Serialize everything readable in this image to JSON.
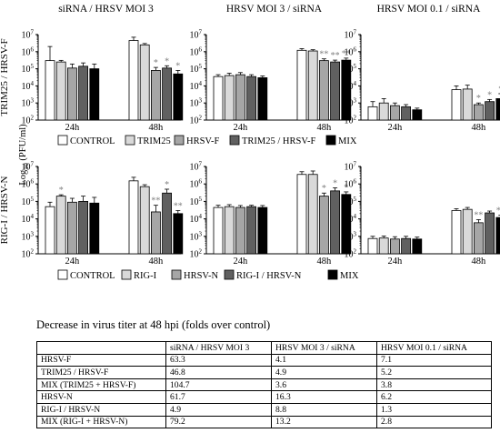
{
  "figure": {
    "y_axis_label_main": "Log",
    "y_axis_label_sub": "10",
    "y_axis_label_unit": " (PFU/ml)",
    "row_labels": [
      "TRIM25 / HRSV-F",
      "RIG-I / HRSV-N"
    ],
    "column_titles": [
      "siRNA / HRSV MOI 3",
      "HRSV MOI 3 / siRNA",
      "HRSV MOI 0.1 / siRNA"
    ],
    "legends": [
      [
        "CONTROL",
        "TRIM25",
        "HRSV-F",
        "TRIM25 / HRSV-F",
        "MIX"
      ],
      [
        "CONTROL",
        "RIG-I",
        "HRSV-N",
        "RIG-I / HRSV-N",
        "MIX"
      ]
    ],
    "bar_colors": [
      "#ffffff",
      "#d9d9d9",
      "#a6a6a6",
      "#606060",
      "#000000"
    ],
    "significance_color": "#808080"
  },
  "chart_data": [
    {
      "type": "bar",
      "title": "siRNA / HRSV MOI 3",
      "row": "TRIM25 / HRSV-F",
      "scale": "log",
      "ylim_exp": [
        2,
        7
      ],
      "categories": [
        "24h",
        "48h"
      ],
      "series": [
        {
          "name": "CONTROL",
          "values": [
            300000,
            4500000
          ],
          "errors": [
            2000000,
            7000000
          ]
        },
        {
          "name": "TRIM25",
          "values": [
            250000,
            2500000
          ],
          "errors": [
            310000,
            3000000
          ]
        },
        {
          "name": "HRSV-F",
          "values": [
            110000,
            80000
          ],
          "errors": [
            190000,
            120000
          ]
        },
        {
          "name": "TRIM25 / HRSV-F",
          "values": [
            140000,
            110000
          ],
          "errors": [
            220000,
            150000
          ]
        },
        {
          "name": "MIX",
          "values": [
            100000,
            50000
          ],
          "errors": [
            190000,
            80000
          ]
        }
      ],
      "significance": [
        [],
        [
          "",
          "",
          "*",
          "*",
          "*"
        ]
      ]
    },
    {
      "type": "bar",
      "title": "HRSV MOI 3 / siRNA",
      "row": "TRIM25 / HRSV-F",
      "scale": "log",
      "ylim_exp": [
        2,
        7
      ],
      "categories": [
        "24h",
        "48h"
      ],
      "series": [
        {
          "name": "CONTROL",
          "values": [
            35000,
            1200000
          ],
          "errors": [
            45000,
            1500000
          ]
        },
        {
          "name": "TRIM25",
          "values": [
            40000,
            1100000
          ],
          "errors": [
            55000,
            1300000
          ]
        },
        {
          "name": "HRSV-F",
          "values": [
            45000,
            300000
          ],
          "errors": [
            60000,
            380000
          ]
        },
        {
          "name": "TRIM25 / HRSV-F",
          "values": [
            35000,
            250000
          ],
          "errors": [
            45000,
            320000
          ]
        },
        {
          "name": "MIX",
          "values": [
            30000,
            320000
          ],
          "errors": [
            38000,
            420000
          ]
        }
      ],
      "significance": [
        [],
        [
          "",
          "",
          "**",
          "**",
          "**"
        ]
      ]
    },
    {
      "type": "bar",
      "title": "HRSV MOI 0.1 / siRNA",
      "row": "TRIM25 / HRSV-F",
      "scale": "log",
      "ylim_exp": [
        2,
        7
      ],
      "categories": [
        "24h",
        "48h"
      ],
      "series": [
        {
          "name": "CONTROL",
          "values": [
            600,
            6000
          ],
          "errors": [
            1200,
            10000
          ]
        },
        {
          "name": "TRIM25",
          "values": [
            1000,
            6500
          ],
          "errors": [
            1800,
            11000
          ]
        },
        {
          "name": "HRSV-F",
          "values": [
            700,
            800
          ],
          "errors": [
            1000,
            1000
          ]
        },
        {
          "name": "TRIM25 / HRSV-F",
          "values": [
            600,
            1200
          ],
          "errors": [
            800,
            1600
          ]
        },
        {
          "name": "MIX",
          "values": [
            400,
            1800
          ],
          "errors": [
            500,
            3500
          ]
        }
      ],
      "significance": [
        [],
        [
          "",
          "",
          "*",
          "*",
          "*"
        ]
      ]
    },
    {
      "type": "bar",
      "title": "",
      "row": "RIG-I / HRSV-N",
      "scale": "log",
      "ylim_exp": [
        2,
        7
      ],
      "categories": [
        "24h",
        "48h"
      ],
      "series": [
        {
          "name": "CONTROL",
          "values": [
            50000,
            1500000
          ],
          "errors": [
            90000,
            2400000
          ]
        },
        {
          "name": "RIG-I",
          "values": [
            200000,
            700000
          ],
          "errors": [
            240000,
            900000
          ]
        },
        {
          "name": "HRSV-N",
          "values": [
            90000,
            25000
          ],
          "errors": [
            150000,
            60000
          ]
        },
        {
          "name": "RIG-I / HRSV-N",
          "values": [
            100000,
            300000
          ],
          "errors": [
            200000,
            500000
          ]
        },
        {
          "name": "MIX",
          "values": [
            80000,
            20000
          ],
          "errors": [
            170000,
            30000
          ]
        }
      ],
      "significance": [
        [
          "",
          "*",
          "",
          "",
          ""
        ],
        [
          "",
          "",
          "**",
          "*",
          "**"
        ]
      ]
    },
    {
      "type": "bar",
      "title": "",
      "row": "RIG-I / HRSV-N",
      "scale": "log",
      "ylim_exp": [
        2,
        7
      ],
      "categories": [
        "24h",
        "48h"
      ],
      "series": [
        {
          "name": "CONTROL",
          "values": [
            45000,
            3500000
          ],
          "errors": [
            60000,
            5000000
          ]
        },
        {
          "name": "RIG-I",
          "values": [
            50000,
            3500000
          ],
          "errors": [
            65000,
            5500000
          ]
        },
        {
          "name": "HRSV-N",
          "values": [
            45000,
            200000
          ],
          "errors": [
            58000,
            300000
          ]
        },
        {
          "name": "RIG-I / HRSV-N",
          "values": [
            50000,
            400000
          ],
          "errors": [
            60000,
            600000
          ]
        },
        {
          "name": "MIX",
          "values": [
            45000,
            250000
          ],
          "errors": [
            58000,
            350000
          ]
        }
      ],
      "significance": [
        [],
        [
          "",
          "",
          "*",
          "*",
          "*"
        ]
      ]
    },
    {
      "type": "bar",
      "title": "",
      "row": "RIG-I / HRSV-N",
      "scale": "log",
      "ylim_exp": [
        2,
        7
      ],
      "categories": [
        "24h",
        "48h"
      ],
      "series": [
        {
          "name": "CONTROL",
          "values": [
            750,
            30000
          ],
          "errors": [
            1000,
            38000
          ]
        },
        {
          "name": "RIG-I",
          "values": [
            800,
            35000
          ],
          "errors": [
            1050,
            45000
          ]
        },
        {
          "name": "HRSV-N",
          "values": [
            700,
            6000
          ],
          "errors": [
            950,
            9000
          ]
        },
        {
          "name": "RIG-I / HRSV-N",
          "values": [
            750,
            22000
          ],
          "errors": [
            1000,
            28000
          ]
        },
        {
          "name": "MIX",
          "values": [
            700,
            12000
          ],
          "errors": [
            900,
            16000
          ]
        }
      ],
      "significance": [
        [],
        [
          "",
          "",
          "**",
          "",
          "**"
        ]
      ]
    }
  ],
  "table": {
    "caption": "Decrease in virus titer at 48 hpi (folds over control)",
    "headers": [
      "",
      "siRNA / HRSV MOI 3",
      "HRSV MOI 3 / siRNA",
      "HRSV MOI 0.1 / siRNA"
    ],
    "rows": [
      [
        "HRSV-F",
        "63.3",
        "4.1",
        "7.1"
      ],
      [
        "TRIM25 / HRSV-F",
        "46.8",
        "4.9",
        "5.2"
      ],
      [
        "MIX (TRIM25 + HRSV-F)",
        "104.7",
        "3.6",
        "3.8"
      ],
      [
        "HRSV-N",
        "61.7",
        "16.3",
        "6.2"
      ],
      [
        "RIG-I / HRSV-N",
        "4.9",
        "8.8",
        "1.3"
      ],
      [
        "MIX (RIG-I + HRSV-N)",
        "79.2",
        "13.2",
        "2.8"
      ]
    ]
  }
}
